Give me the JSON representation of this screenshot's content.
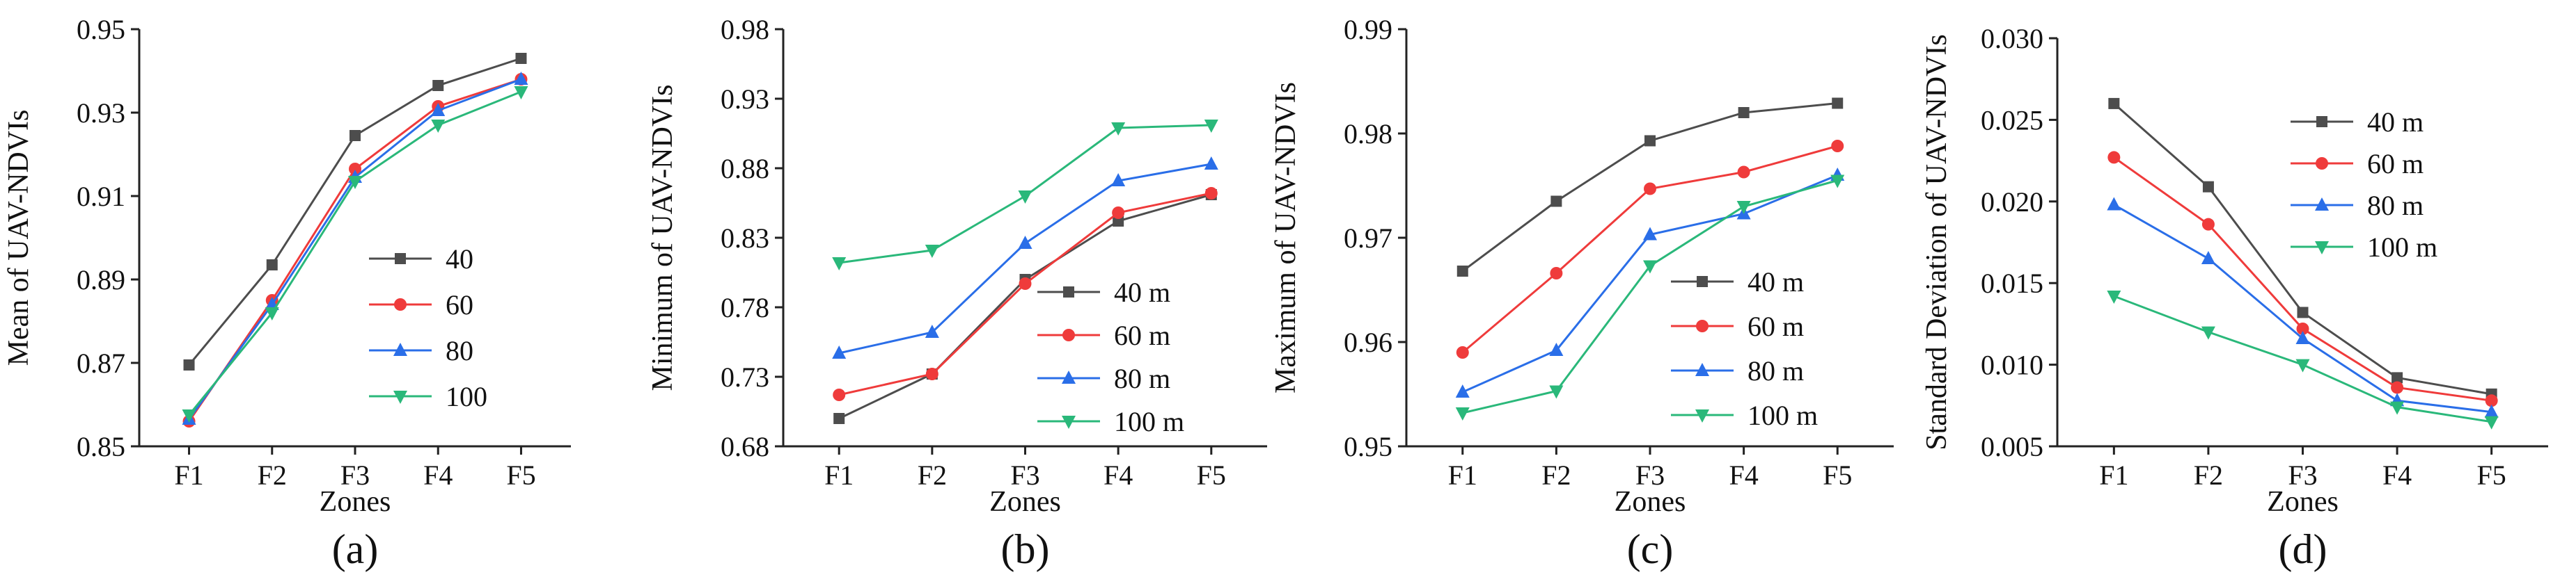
{
  "chart_data": [
    {
      "type": "line",
      "panel_label": "(a)",
      "xlabel": "Zones",
      "ylabel": "Mean of UAV-NDVIs",
      "categories": [
        "F1",
        "F2",
        "F3",
        "F4",
        "F5"
      ],
      "ylim": [
        0.85,
        0.95
      ],
      "yticks": [
        "0.85",
        "0.87",
        "0.89",
        "0.91",
        "0.93",
        "0.95"
      ],
      "legend_position": "right",
      "series": [
        {
          "name": "40",
          "color": "#4d4d4d",
          "marker": "square",
          "values": [
            0.8695,
            0.8935,
            0.9245,
            0.9365,
            0.943
          ]
        },
        {
          "name": "60",
          "color": "#ef3b3b",
          "marker": "circle",
          "values": [
            0.856,
            0.885,
            0.9165,
            0.9315,
            0.938
          ]
        },
        {
          "name": "80",
          "color": "#2a6ee8",
          "marker": "triangle-up",
          "values": [
            0.8565,
            0.884,
            0.9145,
            0.9305,
            0.938
          ]
        },
        {
          "name": "100",
          "color": "#2ab87a",
          "marker": "triangle-down",
          "values": [
            0.8575,
            0.882,
            0.9135,
            0.927,
            0.935
          ]
        }
      ]
    },
    {
      "type": "line",
      "panel_label": "(b)",
      "xlabel": "Zones",
      "ylabel": "Minimum of UAV-NDVIs",
      "categories": [
        "F1",
        "F2",
        "F3",
        "F4",
        "F5"
      ],
      "ylim": [
        0.68,
        0.98
      ],
      "yticks": [
        "0.68",
        "0.73",
        "0.78",
        "0.83",
        "0.88",
        "0.93",
        "0.98"
      ],
      "legend_position": "lower-right",
      "series": [
        {
          "name": "40 m",
          "color": "#4d4d4d",
          "marker": "square",
          "values": [
            0.7,
            0.732,
            0.8,
            0.842,
            0.861
          ]
        },
        {
          "name": "60 m",
          "color": "#ef3b3b",
          "marker": "circle",
          "values": [
            0.717,
            0.732,
            0.797,
            0.848,
            0.862
          ]
        },
        {
          "name": "80 m",
          "color": "#2a6ee8",
          "marker": "triangle-up",
          "values": [
            0.747,
            0.762,
            0.826,
            0.871,
            0.883
          ]
        },
        {
          "name": "100 m",
          "color": "#2ab87a",
          "marker": "triangle-down",
          "values": [
            0.812,
            0.821,
            0.86,
            0.909,
            0.911
          ]
        }
      ]
    },
    {
      "type": "line",
      "panel_label": "(c)",
      "xlabel": "Zones",
      "ylabel": "Maximum of UAV-NDVIs",
      "categories": [
        "F1",
        "F2",
        "F3",
        "F4",
        "F5"
      ],
      "ylim": [
        0.95,
        0.99
      ],
      "yticks": [
        "0.95",
        "0.96",
        "0.97",
        "0.98",
        "0.99"
      ],
      "legend_position": "lower-right",
      "series": [
        {
          "name": "40 m",
          "color": "#4d4d4d",
          "marker": "square",
          "values": [
            0.9668,
            0.9735,
            0.9793,
            0.982,
            0.9829
          ]
        },
        {
          "name": "60 m",
          "color": "#ef3b3b",
          "marker": "circle",
          "values": [
            0.959,
            0.9666,
            0.9747,
            0.9763,
            0.9788
          ]
        },
        {
          "name": "80 m",
          "color": "#2a6ee8",
          "marker": "triangle-up",
          "values": [
            0.9552,
            0.9592,
            0.9703,
            0.9723,
            0.976
          ]
        },
        {
          "name": "100 m",
          "color": "#2ab87a",
          "marker": "triangle-down",
          "values": [
            0.9532,
            0.9553,
            0.9673,
            0.973,
            0.9755
          ]
        }
      ]
    },
    {
      "type": "line",
      "panel_label": "(d)",
      "xlabel": "Zones",
      "ylabel": "Standard Deviation of UAV-NDVIs",
      "categories": [
        "F1",
        "F2",
        "F3",
        "F4",
        "F5"
      ],
      "ylim": [
        0.005,
        0.03
      ],
      "yticks": [
        "0.005",
        "0.010",
        "0.015",
        "0.020",
        "0.025",
        "0.030"
      ],
      "legend_position": "top-right",
      "series": [
        {
          "name": "40 m",
          "color": "#4d4d4d",
          "marker": "square",
          "values": [
            0.026,
            0.0209,
            0.0132,
            0.0092,
            0.0082
          ]
        },
        {
          "name": "60 m",
          "color": "#ef3b3b",
          "marker": "circle",
          "values": [
            0.0227,
            0.0186,
            0.0122,
            0.0086,
            0.0078
          ]
        },
        {
          "name": "80 m",
          "color": "#2a6ee8",
          "marker": "triangle-up",
          "values": [
            0.0198,
            0.0165,
            0.0116,
            0.0078,
            0.0071
          ]
        },
        {
          "name": "100 m",
          "color": "#2ab87a",
          "marker": "triangle-down",
          "values": [
            0.0142,
            0.012,
            0.01,
            0.0074,
            0.0065
          ]
        }
      ]
    }
  ]
}
